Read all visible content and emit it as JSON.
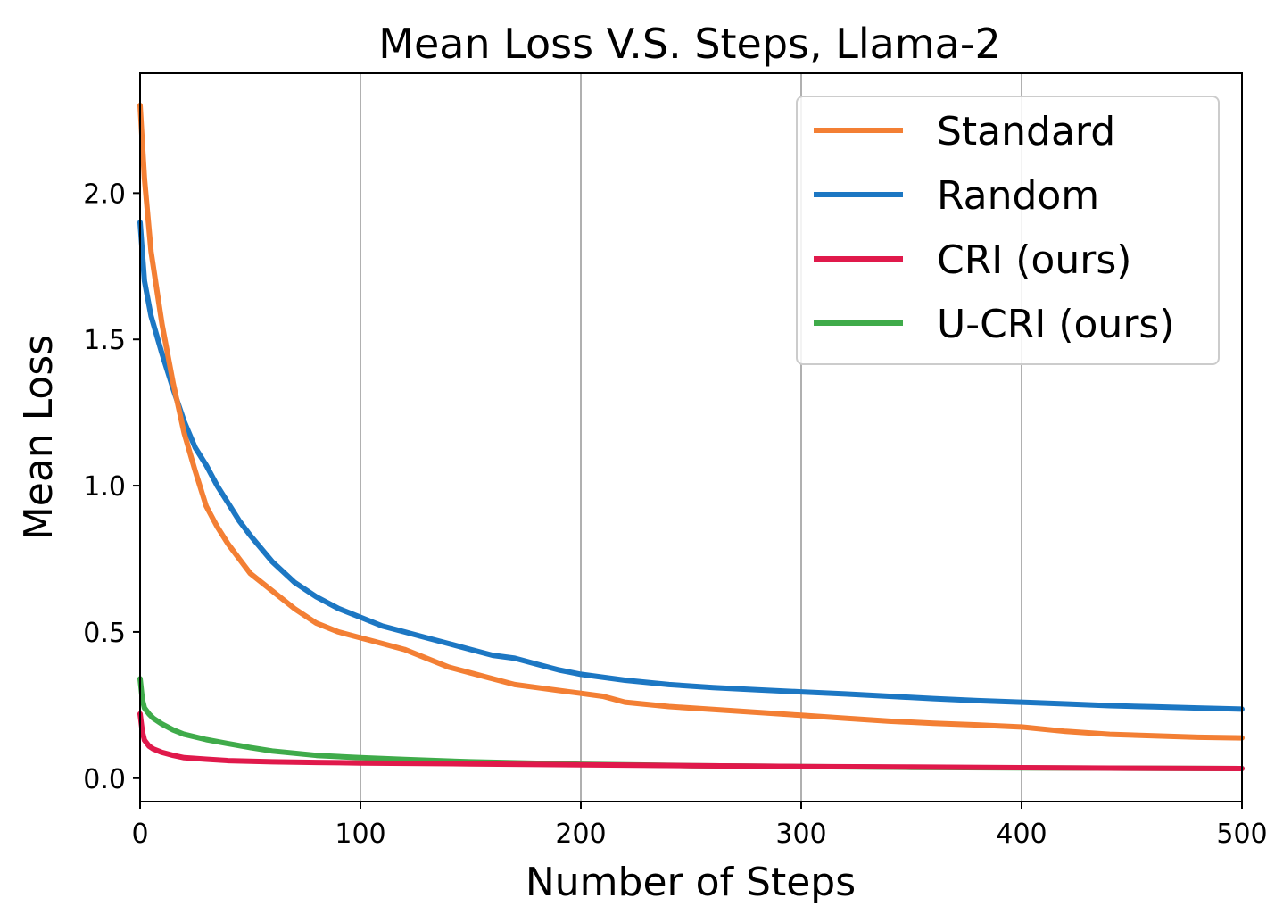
{
  "chart_data": {
    "type": "line",
    "title": "Mean Loss V.S. Steps, Llama-2",
    "xlabel": "Number of Steps",
    "ylabel": "Mean Loss",
    "xlim": [
      0,
      500
    ],
    "ylim": [
      -0.08,
      2.41
    ],
    "xticks": [
      0,
      100,
      200,
      300,
      400,
      500
    ],
    "xtick_labels": [
      "0",
      "100",
      "200",
      "300",
      "400",
      "500"
    ],
    "yticks": [
      0.0,
      0.5,
      1.0,
      1.5,
      2.0
    ],
    "ytick_labels": [
      "0.0",
      "0.5",
      "1.0",
      "1.5",
      "2.0"
    ],
    "grid": "vertical",
    "legend_position": "top-right",
    "series": [
      {
        "name": "Standard",
        "color": "#f37f34",
        "x": [
          0,
          2,
          5,
          10,
          15,
          20,
          25,
          30,
          35,
          40,
          45,
          50,
          60,
          70,
          80,
          90,
          100,
          110,
          120,
          130,
          140,
          150,
          160,
          170,
          180,
          190,
          200,
          210,
          220,
          240,
          260,
          280,
          300,
          320,
          340,
          360,
          380,
          400,
          420,
          440,
          460,
          480,
          500
        ],
        "y": [
          2.3,
          2.05,
          1.8,
          1.55,
          1.35,
          1.18,
          1.05,
          0.93,
          0.86,
          0.8,
          0.75,
          0.7,
          0.64,
          0.58,
          0.53,
          0.5,
          0.48,
          0.46,
          0.44,
          0.41,
          0.38,
          0.36,
          0.34,
          0.32,
          0.31,
          0.3,
          0.29,
          0.28,
          0.26,
          0.245,
          0.235,
          0.225,
          0.215,
          0.205,
          0.195,
          0.188,
          0.182,
          0.175,
          0.16,
          0.15,
          0.145,
          0.14,
          0.138
        ]
      },
      {
        "name": "Random",
        "color": "#1c77c3",
        "x": [
          0,
          2,
          5,
          10,
          15,
          20,
          25,
          30,
          35,
          40,
          45,
          50,
          60,
          70,
          80,
          90,
          100,
          110,
          120,
          130,
          140,
          150,
          160,
          170,
          180,
          190,
          200,
          220,
          240,
          260,
          280,
          300,
          320,
          340,
          360,
          380,
          400,
          420,
          440,
          460,
          480,
          500
        ],
        "y": [
          1.9,
          1.7,
          1.58,
          1.45,
          1.33,
          1.22,
          1.13,
          1.07,
          1.0,
          0.94,
          0.88,
          0.83,
          0.74,
          0.67,
          0.62,
          0.58,
          0.55,
          0.52,
          0.5,
          0.48,
          0.46,
          0.44,
          0.42,
          0.41,
          0.39,
          0.37,
          0.355,
          0.335,
          0.32,
          0.31,
          0.302,
          0.295,
          0.288,
          0.28,
          0.272,
          0.265,
          0.26,
          0.254,
          0.248,
          0.244,
          0.24,
          0.236
        ]
      },
      {
        "name": "CRI (ours)",
        "color": "#e0194b",
        "x": [
          0,
          1,
          2,
          4,
          6,
          10,
          15,
          20,
          30,
          40,
          60,
          80,
          100,
          150,
          200,
          250,
          300,
          350,
          400,
          450,
          500
        ],
        "y": [
          0.22,
          0.16,
          0.13,
          0.11,
          0.1,
          0.088,
          0.078,
          0.07,
          0.065,
          0.06,
          0.056,
          0.054,
          0.052,
          0.049,
          0.046,
          0.043,
          0.04,
          0.038,
          0.036,
          0.034,
          0.033
        ]
      },
      {
        "name": "U-CRI (ours)",
        "color": "#3fab4a",
        "x": [
          0,
          1,
          2,
          4,
          6,
          10,
          15,
          20,
          30,
          40,
          50,
          60,
          80,
          100,
          120,
          150,
          200,
          250,
          300,
          350,
          400,
          450,
          500
        ],
        "y": [
          0.34,
          0.27,
          0.24,
          0.22,
          0.205,
          0.185,
          0.165,
          0.15,
          0.132,
          0.118,
          0.105,
          0.093,
          0.078,
          0.07,
          0.064,
          0.056,
          0.048,
          0.043,
          0.04,
          0.037,
          0.035,
          0.034,
          0.033
        ]
      }
    ]
  }
}
